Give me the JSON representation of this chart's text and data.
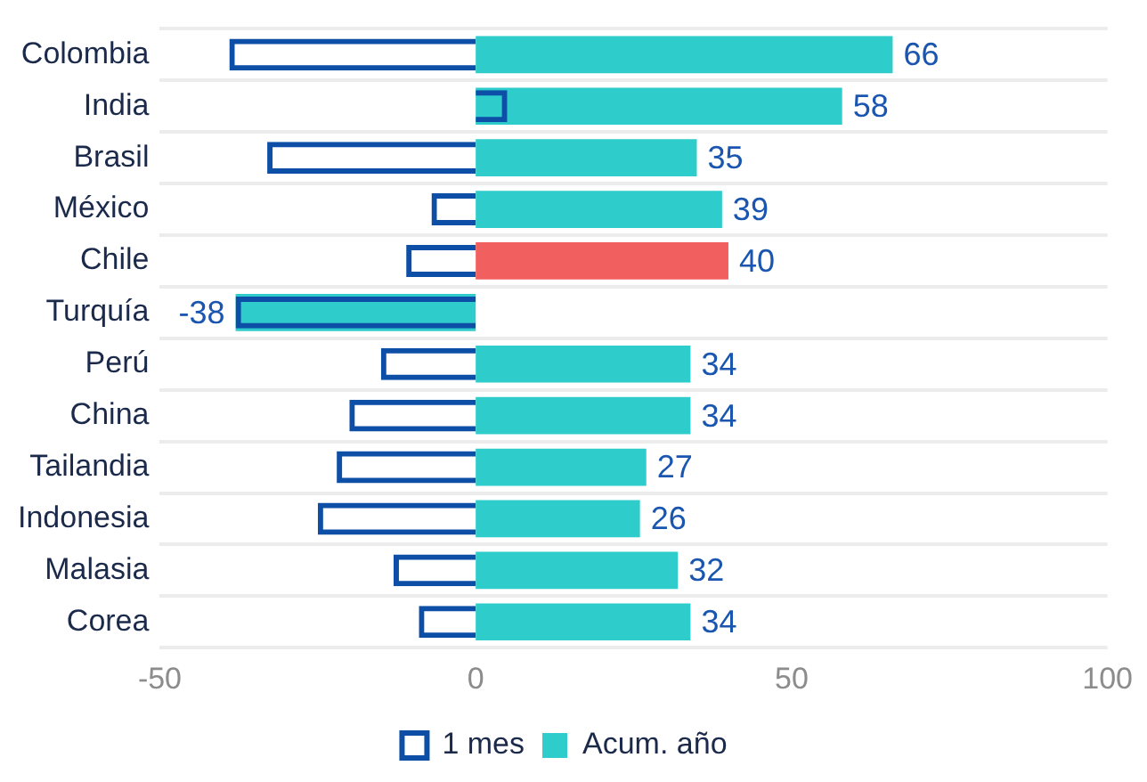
{
  "chart_data": {
    "type": "bar",
    "orientation": "horizontal",
    "categories": [
      "Colombia",
      "India",
      "Brasil",
      "México",
      "Chile",
      "Turquía",
      "Perú",
      "China",
      "Tailandia",
      "Indonesia",
      "Malasia",
      "Corea"
    ],
    "series": [
      {
        "name": "1 mes",
        "color": "#0d4ea6",
        "values": [
          -39,
          5,
          -33,
          -7,
          -11,
          -38,
          -15,
          -20,
          -22,
          -25,
          -13,
          -9
        ]
      },
      {
        "name": "Acum. año",
        "color": "#2ecdcc",
        "colors": [
          "#2ecdcc",
          "#2ecdcc",
          "#2ecdcc",
          "#2ecdcc",
          "#f25f5f",
          "#2ecdcc",
          "#2ecdcc",
          "#2ecdcc",
          "#2ecdcc",
          "#2ecdcc",
          "#2ecdcc",
          "#2ecdcc"
        ],
        "values": [
          66,
          58,
          35,
          39,
          40,
          -38,
          34,
          34,
          27,
          26,
          32,
          34
        ],
        "value_labels": [
          "66",
          "58",
          "35",
          "39",
          "40",
          "-38",
          "34",
          "34",
          "27",
          "26",
          "32",
          "34"
        ]
      }
    ],
    "xlim": [
      -50,
      100
    ],
    "xticks": [
      -50,
      0,
      50,
      100
    ],
    "grid": "y",
    "legend": "bottom"
  }
}
